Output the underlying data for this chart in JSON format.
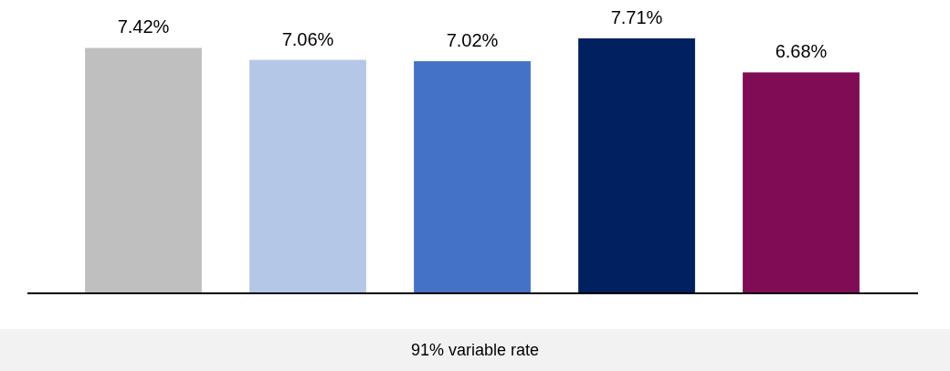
{
  "chart_data": {
    "type": "bar",
    "categories": [
      null,
      null,
      null,
      null,
      null
    ],
    "values": [
      7.42,
      7.06,
      7.02,
      7.71,
      6.68
    ],
    "value_labels": [
      "7.42%",
      "7.06%",
      "7.02%",
      "7.71%",
      "6.68%"
    ],
    "colors": [
      "#bfbfbf",
      "#b4c7e7",
      "#4472c4",
      "#002060",
      "#7f0c55"
    ],
    "annotations": [
      "91% variable rate"
    ]
  }
}
